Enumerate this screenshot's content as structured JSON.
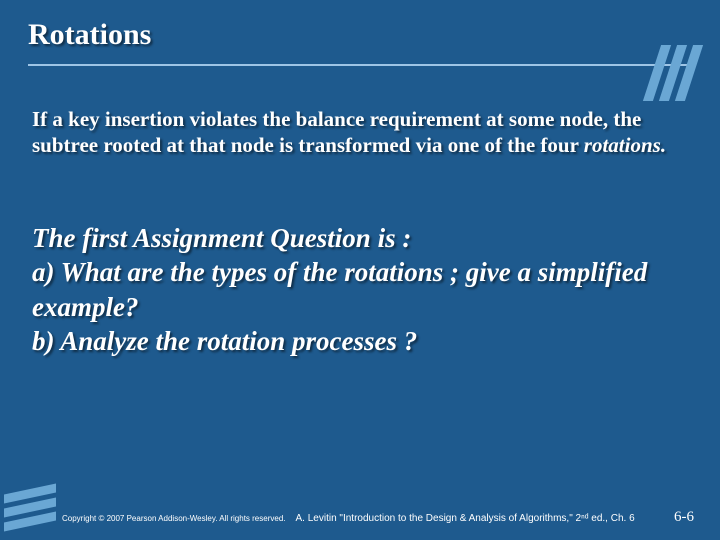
{
  "title": "Rotations",
  "paragraph": {
    "prefix": "If a key insertion violates the balance requirement at some node, the subtree rooted at that node is transformed via one of the four ",
    "italic": "rotations.",
    "suffix": ""
  },
  "question": {
    "line1": "The first Assignment  Question is :",
    "line2": "a)     What are the types of the rotations ; give a simplified example?",
    "line3": "b) Analyze the rotation processes ?"
  },
  "footer": {
    "copyright": "Copyright © 2007 Pearson Addison-Wesley. All rights reserved.",
    "citation": "A. Levitin \"Introduction to the Design & Analysis of Algorithms,\" 2ⁿᵈ ed., Ch. 6",
    "pagenum": "6-6"
  },
  "colors": {
    "background": "#1e5a8e",
    "accent": "#6aa7d4",
    "text": "#ffffff"
  }
}
